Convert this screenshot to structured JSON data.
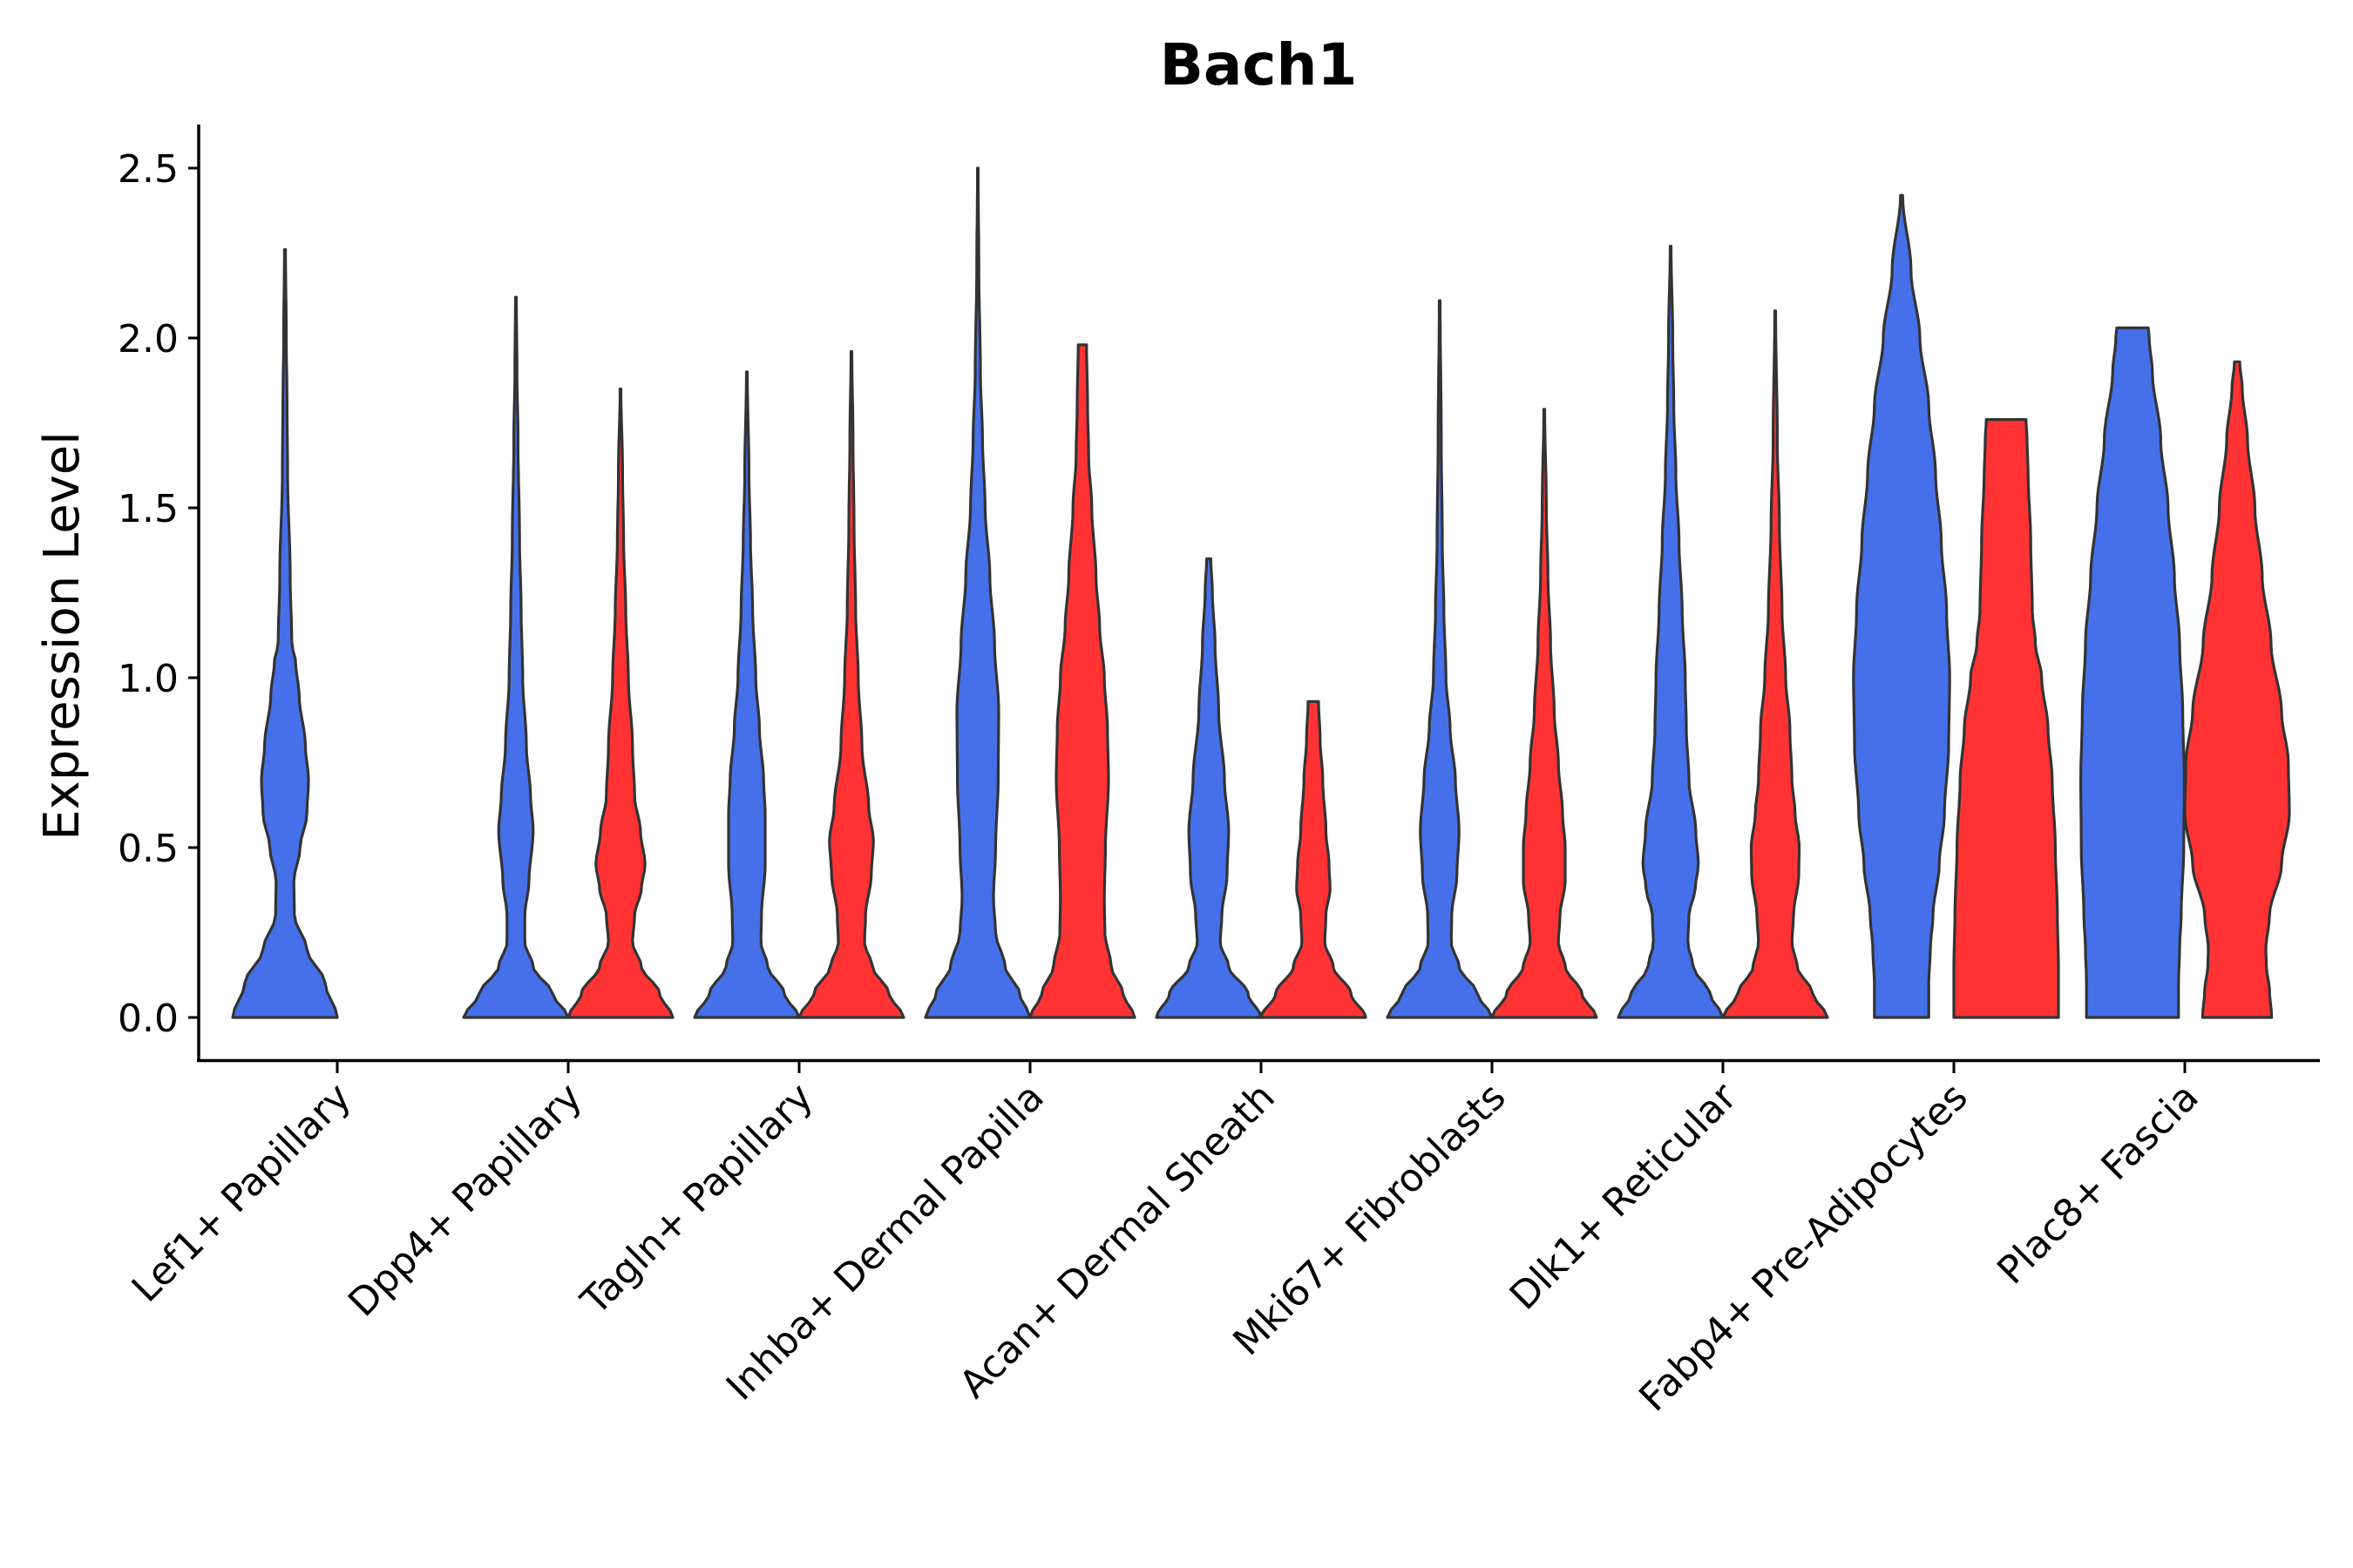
{
  "chart_data": {
    "type": "violin",
    "title": "Bach1",
    "xlabel": "",
    "ylabel": "Expression Level",
    "ylim": [
      -0.125,
      2.625
    ],
    "yticks": [
      0.0,
      0.5,
      1.0,
      1.5,
      2.0,
      2.5
    ],
    "ytick_labels": [
      "0.0",
      "0.5",
      "1.0",
      "1.5",
      "2.0",
      "2.5"
    ],
    "grid": false,
    "legend": "none",
    "split_colors": {
      "blue": "#4570EA",
      "red": "#FF3333"
    },
    "categories": [
      "Lef1+ Papillary",
      "Dpp4+ Papillary",
      "Tagln+ Papillary",
      "Inhba+ Dermal Papilla",
      "Acan+ Dermal Sheath",
      "Mki67+ Fibroblasts",
      "Dlk1+ Reticular",
      "Fabp4+ Pre-Adipocytes",
      "Plac8+ Fascia"
    ],
    "violins": [
      {
        "category": "Lef1+ Papillary",
        "group": "blue",
        "max": 2.26,
        "shape": [
          [
            0,
            1.0
          ],
          [
            0.1,
            0.77
          ],
          [
            0.2,
            0.42
          ],
          [
            0.3,
            0.18
          ],
          [
            0.4,
            0.17
          ],
          [
            0.5,
            0.29
          ],
          [
            0.6,
            0.42
          ],
          [
            0.7,
            0.45
          ],
          [
            0.8,
            0.39
          ],
          [
            0.95,
            0.27
          ],
          [
            1.05,
            0.2
          ],
          [
            1.1,
            0.13
          ],
          [
            1.3,
            0.1
          ],
          [
            1.6,
            0.05
          ],
          [
            1.8,
            0.04
          ],
          [
            2.0,
            0.025
          ],
          [
            2.26,
            0.01
          ]
        ]
      },
      {
        "category": "Dpp4+ Papillary",
        "group": "blue",
        "max": 2.12,
        "shape": [
          [
            0,
            1.0
          ],
          [
            0.07,
            0.7
          ],
          [
            0.15,
            0.33
          ],
          [
            0.22,
            0.17
          ],
          [
            0.3,
            0.17
          ],
          [
            0.4,
            0.25
          ],
          [
            0.55,
            0.33
          ],
          [
            0.65,
            0.28
          ],
          [
            0.8,
            0.2
          ],
          [
            1.0,
            0.13
          ],
          [
            1.2,
            0.1
          ],
          [
            1.4,
            0.07
          ],
          [
            1.7,
            0.04
          ],
          [
            1.9,
            0.02
          ],
          [
            2.12,
            0.008
          ]
        ]
      },
      {
        "category": "Dpp4+ Papillary",
        "group": "red",
        "max": 1.85,
        "shape": [
          [
            0,
            1.0
          ],
          [
            0.07,
            0.75
          ],
          [
            0.15,
            0.4
          ],
          [
            0.22,
            0.23
          ],
          [
            0.3,
            0.27
          ],
          [
            0.38,
            0.4
          ],
          [
            0.45,
            0.47
          ],
          [
            0.55,
            0.38
          ],
          [
            0.65,
            0.27
          ],
          [
            0.8,
            0.23
          ],
          [
            1.0,
            0.15
          ],
          [
            1.2,
            0.1
          ],
          [
            1.4,
            0.06
          ],
          [
            1.6,
            0.04
          ],
          [
            1.85,
            0.008
          ]
        ]
      },
      {
        "category": "Tagln+ Papillary",
        "group": "blue",
        "max": 1.9,
        "shape": [
          [
            0,
            1.0
          ],
          [
            0.07,
            0.72
          ],
          [
            0.15,
            0.4
          ],
          [
            0.22,
            0.27
          ],
          [
            0.3,
            0.28
          ],
          [
            0.45,
            0.35
          ],
          [
            0.6,
            0.35
          ],
          [
            0.7,
            0.32
          ],
          [
            0.85,
            0.24
          ],
          [
            1.0,
            0.17
          ],
          [
            1.2,
            0.11
          ],
          [
            1.4,
            0.07
          ],
          [
            1.6,
            0.04
          ],
          [
            1.9,
            0.008
          ]
        ]
      },
      {
        "category": "Tagln+ Papillary",
        "group": "red",
        "max": 1.96,
        "shape": [
          [
            0,
            1.0
          ],
          [
            0.07,
            0.72
          ],
          [
            0.15,
            0.4
          ],
          [
            0.22,
            0.25
          ],
          [
            0.3,
            0.27
          ],
          [
            0.42,
            0.38
          ],
          [
            0.52,
            0.42
          ],
          [
            0.62,
            0.33
          ],
          [
            0.8,
            0.2
          ],
          [
            1.0,
            0.13
          ],
          [
            1.2,
            0.08
          ],
          [
            1.45,
            0.05
          ],
          [
            1.7,
            0.03
          ],
          [
            1.96,
            0.008
          ]
        ]
      },
      {
        "category": "Inhba+ Dermal Papilla",
        "group": "blue",
        "max": 2.5,
        "shape": [
          [
            0,
            1.0
          ],
          [
            0.07,
            0.8
          ],
          [
            0.15,
            0.52
          ],
          [
            0.25,
            0.34
          ],
          [
            0.35,
            0.3
          ],
          [
            0.5,
            0.34
          ],
          [
            0.7,
            0.39
          ],
          [
            0.9,
            0.4
          ],
          [
            1.1,
            0.32
          ],
          [
            1.3,
            0.23
          ],
          [
            1.5,
            0.14
          ],
          [
            1.7,
            0.09
          ],
          [
            1.9,
            0.05
          ],
          [
            2.2,
            0.02
          ],
          [
            2.5,
            0.006
          ]
        ]
      },
      {
        "category": "Inhba+ Dermal Papilla",
        "group": "red",
        "max": 1.98,
        "shape": [
          [
            0,
            1.0
          ],
          [
            0.07,
            0.78
          ],
          [
            0.15,
            0.55
          ],
          [
            0.25,
            0.43
          ],
          [
            0.35,
            0.42
          ],
          [
            0.5,
            0.44
          ],
          [
            0.7,
            0.5
          ],
          [
            0.85,
            0.48
          ],
          [
            1.0,
            0.42
          ],
          [
            1.15,
            0.33
          ],
          [
            1.3,
            0.26
          ],
          [
            1.5,
            0.18
          ],
          [
            1.65,
            0.12
          ],
          [
            1.8,
            0.1
          ],
          [
            1.98,
            0.08
          ]
        ]
      },
      {
        "category": "Acan+ Dermal Sheath",
        "group": "blue",
        "max": 1.35,
        "shape": [
          [
            0,
            1.0
          ],
          [
            0.07,
            0.75
          ],
          [
            0.15,
            0.38
          ],
          [
            0.22,
            0.22
          ],
          [
            0.3,
            0.25
          ],
          [
            0.42,
            0.35
          ],
          [
            0.55,
            0.38
          ],
          [
            0.7,
            0.3
          ],
          [
            0.9,
            0.19
          ],
          [
            1.1,
            0.12
          ],
          [
            1.25,
            0.07
          ],
          [
            1.35,
            0.04
          ]
        ]
      },
      {
        "category": "Acan+ Dermal Sheath",
        "group": "red",
        "max": 0.93,
        "shape": [
          [
            0,
            1.0
          ],
          [
            0.07,
            0.72
          ],
          [
            0.15,
            0.38
          ],
          [
            0.22,
            0.22
          ],
          [
            0.3,
            0.24
          ],
          [
            0.38,
            0.32
          ],
          [
            0.45,
            0.3
          ],
          [
            0.55,
            0.24
          ],
          [
            0.7,
            0.18
          ],
          [
            0.82,
            0.13
          ],
          [
            0.93,
            0.1
          ]
        ]
      },
      {
        "category": "Mki67+ Fibroblasts",
        "group": "blue",
        "max": 2.11,
        "shape": [
          [
            0,
            1.0
          ],
          [
            0.07,
            0.72
          ],
          [
            0.15,
            0.37
          ],
          [
            0.22,
            0.22
          ],
          [
            0.3,
            0.23
          ],
          [
            0.42,
            0.33
          ],
          [
            0.55,
            0.37
          ],
          [
            0.7,
            0.3
          ],
          [
            0.85,
            0.2
          ],
          [
            1.0,
            0.12
          ],
          [
            1.2,
            0.08
          ],
          [
            1.4,
            0.05
          ],
          [
            1.7,
            0.03
          ],
          [
            2.11,
            0.008
          ]
        ]
      },
      {
        "category": "Mki67+ Fibroblasts",
        "group": "red",
        "max": 1.79,
        "shape": [
          [
            0,
            1.0
          ],
          [
            0.07,
            0.72
          ],
          [
            0.15,
            0.4
          ],
          [
            0.22,
            0.27
          ],
          [
            0.3,
            0.3
          ],
          [
            0.4,
            0.4
          ],
          [
            0.5,
            0.4
          ],
          [
            0.6,
            0.35
          ],
          [
            0.75,
            0.27
          ],
          [
            0.9,
            0.19
          ],
          [
            1.1,
            0.12
          ],
          [
            1.3,
            0.07
          ],
          [
            1.5,
            0.04
          ],
          [
            1.79,
            0.008
          ]
        ]
      },
      {
        "category": "Dlk1+ Reticular",
        "group": "blue",
        "max": 2.27,
        "shape": [
          [
            0,
            1.0
          ],
          [
            0.07,
            0.75
          ],
          [
            0.15,
            0.43
          ],
          [
            0.22,
            0.33
          ],
          [
            0.3,
            0.35
          ],
          [
            0.38,
            0.47
          ],
          [
            0.45,
            0.53
          ],
          [
            0.55,
            0.48
          ],
          [
            0.7,
            0.35
          ],
          [
            0.85,
            0.3
          ],
          [
            1.0,
            0.28
          ],
          [
            1.2,
            0.22
          ],
          [
            1.4,
            0.16
          ],
          [
            1.6,
            0.1
          ],
          [
            1.8,
            0.06
          ],
          [
            2.0,
            0.04
          ],
          [
            2.27,
            0.008
          ]
        ]
      },
      {
        "category": "Dlk1+ Reticular",
        "group": "red",
        "max": 2.08,
        "shape": [
          [
            0,
            1.0
          ],
          [
            0.07,
            0.72
          ],
          [
            0.15,
            0.42
          ],
          [
            0.22,
            0.32
          ],
          [
            0.3,
            0.35
          ],
          [
            0.42,
            0.45
          ],
          [
            0.5,
            0.46
          ],
          [
            0.6,
            0.38
          ],
          [
            0.7,
            0.32
          ],
          [
            0.85,
            0.28
          ],
          [
            1.0,
            0.2
          ],
          [
            1.2,
            0.13
          ],
          [
            1.45,
            0.08
          ],
          [
            1.7,
            0.04
          ],
          [
            2.08,
            0.008
          ]
        ]
      },
      {
        "category": "Fabp4+ Pre-Adipocytes",
        "group": "blue",
        "max": 2.42,
        "shape": [
          [
            0,
            0.52
          ],
          [
            0.1,
            0.52
          ],
          [
            0.2,
            0.55
          ],
          [
            0.3,
            0.6
          ],
          [
            0.45,
            0.72
          ],
          [
            0.6,
            0.82
          ],
          [
            0.8,
            0.9
          ],
          [
            1.0,
            0.92
          ],
          [
            1.2,
            0.86
          ],
          [
            1.4,
            0.76
          ],
          [
            1.6,
            0.65
          ],
          [
            1.8,
            0.52
          ],
          [
            2.0,
            0.35
          ],
          [
            2.2,
            0.18
          ],
          [
            2.42,
            0.02
          ]
        ]
      },
      {
        "category": "Fabp4+ Pre-Adipocytes",
        "group": "red",
        "max": 1.76,
        "shape": [
          [
            0,
            1.0
          ],
          [
            0.15,
            1.0
          ],
          [
            0.3,
            0.98
          ],
          [
            0.5,
            0.94
          ],
          [
            0.7,
            0.88
          ],
          [
            0.85,
            0.8
          ],
          [
            1.0,
            0.68
          ],
          [
            1.1,
            0.56
          ],
          [
            1.2,
            0.5
          ],
          [
            1.4,
            0.47
          ],
          [
            1.6,
            0.42
          ],
          [
            1.7,
            0.4
          ],
          [
            1.76,
            0.38
          ]
        ]
      },
      {
        "category": "Plac8+ Fascia",
        "group": "blue",
        "max": 2.03,
        "shape": [
          [
            0,
            0.88
          ],
          [
            0.1,
            0.88
          ],
          [
            0.2,
            0.9
          ],
          [
            0.3,
            0.93
          ],
          [
            0.5,
            0.98
          ],
          [
            0.7,
            0.99
          ],
          [
            0.9,
            0.96
          ],
          [
            1.1,
            0.9
          ],
          [
            1.3,
            0.8
          ],
          [
            1.5,
            0.68
          ],
          [
            1.7,
            0.54
          ],
          [
            1.9,
            0.38
          ],
          [
            2.0,
            0.32
          ],
          [
            2.03,
            0.3
          ]
        ]
      },
      {
        "category": "Plac8+ Fascia",
        "group": "red",
        "max": 1.93,
        "shape": [
          [
            0,
            0.66
          ],
          [
            0.08,
            0.62
          ],
          [
            0.15,
            0.56
          ],
          [
            0.2,
            0.55
          ],
          [
            0.3,
            0.62
          ],
          [
            0.45,
            0.85
          ],
          [
            0.6,
            1.0
          ],
          [
            0.75,
            0.98
          ],
          [
            0.9,
            0.85
          ],
          [
            1.1,
            0.65
          ],
          [
            1.3,
            0.48
          ],
          [
            1.5,
            0.34
          ],
          [
            1.7,
            0.2
          ],
          [
            1.85,
            0.1
          ],
          [
            1.93,
            0.05
          ]
        ]
      }
    ]
  }
}
